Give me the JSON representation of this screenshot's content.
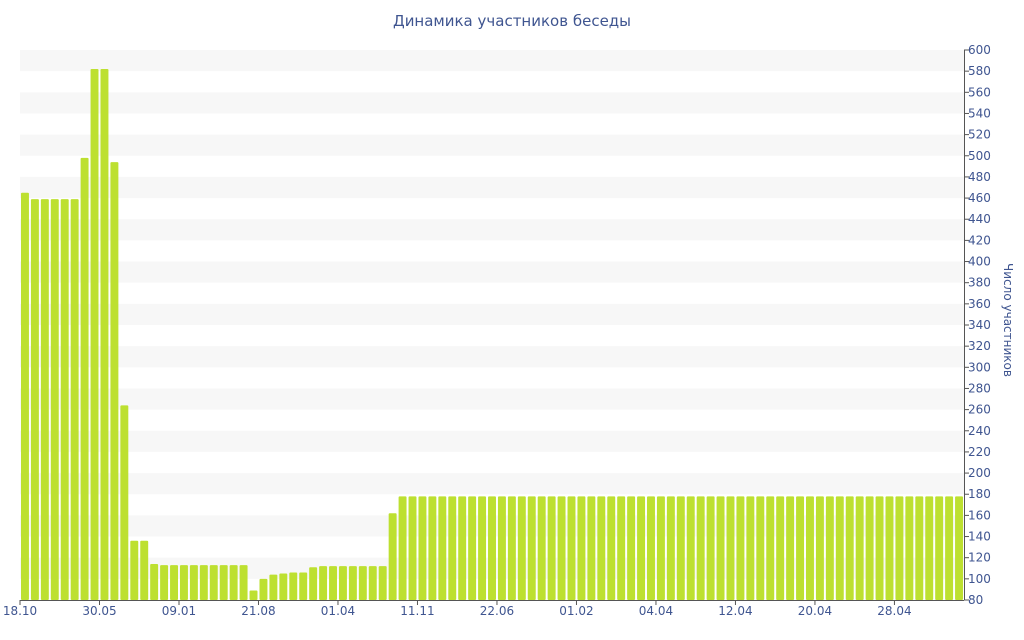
{
  "chart_data": {
    "type": "bar",
    "title": "Динамика участников беседы",
    "ylabel": "Число участников",
    "xlabel": "",
    "ylim": [
      80,
      600
    ],
    "yticks": [
      80,
      100,
      120,
      140,
      160,
      180,
      200,
      220,
      240,
      260,
      280,
      300,
      320,
      340,
      360,
      380,
      400,
      420,
      440,
      460,
      480,
      500,
      520,
      540,
      560,
      580,
      600
    ],
    "y_axis_side": "right",
    "grid": "horizontal alternating bands",
    "legend": "none",
    "xtick_labels": [
      {
        "index": 0,
        "label": "18.10"
      },
      {
        "index": 8,
        "label": "30.05"
      },
      {
        "index": 16,
        "label": "09.01"
      },
      {
        "index": 24,
        "label": "21.08"
      },
      {
        "index": 32,
        "label": "01.04"
      },
      {
        "index": 40,
        "label": "11.11"
      },
      {
        "index": 48,
        "label": "22.06"
      },
      {
        "index": 56,
        "label": "01.02"
      },
      {
        "index": 64,
        "label": "04.04"
      },
      {
        "index": 72,
        "label": "12.04"
      },
      {
        "index": 80,
        "label": "20.04"
      },
      {
        "index": 88,
        "label": "28.04"
      }
    ],
    "values": [
      465,
      459,
      459,
      459,
      459,
      459,
      498,
      582,
      582,
      494,
      264,
      136,
      136,
      114,
      113,
      113,
      113,
      113,
      113,
      113,
      113,
      113,
      113,
      89,
      100,
      104,
      105,
      106,
      106,
      111,
      112,
      112,
      112,
      112,
      112,
      112,
      112,
      162,
      178,
      178,
      178,
      178,
      178,
      178,
      178,
      178,
      178,
      178,
      178,
      178,
      178,
      178,
      178,
      178,
      178,
      178,
      178,
      178,
      178,
      178,
      178,
      178,
      178,
      178,
      178,
      178,
      178,
      178,
      178,
      178,
      178,
      178,
      178,
      178,
      178,
      178,
      178,
      178,
      178,
      178,
      178,
      178,
      178,
      178,
      178,
      178,
      178,
      178,
      178,
      178,
      178,
      178,
      178,
      178,
      178
    ],
    "colors": {
      "bar": "#bde030",
      "band": "#f7f7f7",
      "text": "#3f5590",
      "axis": "#555555"
    }
  }
}
